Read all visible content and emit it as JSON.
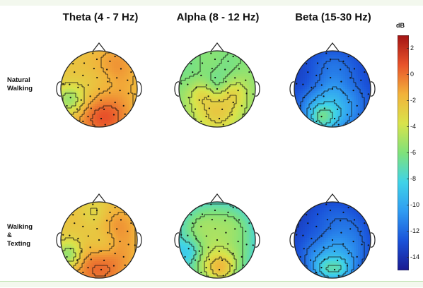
{
  "columns": [
    {
      "title": "Theta (4 - 7 Hz)"
    },
    {
      "title": "Alpha (8 - 12 Hz)"
    },
    {
      "title": "Beta (15-30 Hz)"
    }
  ],
  "rows": [
    {
      "label_lines": [
        "Natural",
        "Walking"
      ]
    },
    {
      "label_lines": [
        "Walking",
        "&",
        "Texting"
      ]
    }
  ],
  "colorbar": {
    "unit": "dB",
    "min": -15,
    "max": 3,
    "ticks": [
      "2",
      "0",
      "-2",
      "-4",
      "-6",
      "-8",
      "-10",
      "-12",
      "-14"
    ],
    "tick_values": [
      2,
      0,
      -2,
      -4,
      -6,
      -8,
      -10,
      -12,
      -14
    ],
    "colormap": [
      "#1a1a90",
      "#1a52d9",
      "#2f9bf2",
      "#3fd3e8",
      "#7fe27a",
      "#d9e34a",
      "#f2b23a",
      "#e8522a",
      "#a31414"
    ]
  },
  "maps": [
    {
      "name": "theta-natural-walking",
      "base": -1.5,
      "ring": -2.0,
      "blobs": [
        [
          0.5,
          0.85,
          0.28,
          1.8
        ],
        [
          0.62,
          0.9,
          0.18,
          1.0
        ],
        [
          0.75,
          0.15,
          0.2,
          1.2
        ],
        [
          0.5,
          0.45,
          0.25,
          -1.0
        ],
        [
          0.25,
          0.45,
          0.2,
          -0.6
        ],
        [
          0.12,
          0.65,
          0.14,
          -3.5
        ]
      ]
    },
    {
      "name": "alpha-natural-walking",
      "base": -5.0,
      "ring": -5.5,
      "blobs": [
        [
          0.5,
          0.82,
          0.22,
          2.5
        ],
        [
          0.3,
          0.55,
          0.12,
          1.5
        ],
        [
          0.7,
          0.55,
          0.12,
          1.5
        ],
        [
          0.5,
          0.45,
          0.12,
          -1.5
        ],
        [
          0.2,
          0.3,
          0.2,
          -1.0
        ],
        [
          0.65,
          0.2,
          0.15,
          -1.0
        ]
      ]
    },
    {
      "name": "beta-natural-walking",
      "base": -11.5,
      "ring": -12.5,
      "blobs": [
        [
          0.45,
          0.85,
          0.25,
          2.5
        ],
        [
          0.35,
          0.88,
          0.12,
          3.0
        ],
        [
          0.5,
          0.5,
          0.2,
          1.0
        ],
        [
          0.2,
          0.4,
          0.2,
          -1.5
        ],
        [
          0.8,
          0.4,
          0.2,
          -1.0
        ]
      ]
    },
    {
      "name": "theta-walking-texting",
      "base": -1.5,
      "ring": -2.0,
      "blobs": [
        [
          0.5,
          0.88,
          0.28,
          2.0
        ],
        [
          0.45,
          0.15,
          0.15,
          -1.5
        ],
        [
          0.2,
          0.5,
          0.18,
          -1.2
        ],
        [
          0.75,
          0.3,
          0.18,
          0.8
        ],
        [
          0.55,
          0.55,
          0.15,
          -1.5
        ],
        [
          0.1,
          0.7,
          0.12,
          -3.5
        ]
      ]
    },
    {
      "name": "alpha-walking-texting",
      "base": -7.0,
      "ring": -8.0,
      "blobs": [
        [
          0.5,
          0.85,
          0.25,
          3.5
        ],
        [
          0.55,
          0.88,
          0.12,
          2.0
        ],
        [
          0.3,
          0.3,
          0.2,
          1.5
        ],
        [
          0.7,
          0.3,
          0.18,
          1.2
        ],
        [
          0.15,
          0.65,
          0.12,
          -2.0
        ]
      ]
    },
    {
      "name": "beta-walking-texting",
      "base": -12.0,
      "ring": -13.0,
      "blobs": [
        [
          0.5,
          0.88,
          0.25,
          2.5
        ],
        [
          0.4,
          0.88,
          0.1,
          2.0
        ],
        [
          0.6,
          0.88,
          0.1,
          2.0
        ],
        [
          0.5,
          0.55,
          0.2,
          0.8
        ],
        [
          0.25,
          0.4,
          0.2,
          -1.0
        ]
      ]
    }
  ]
}
